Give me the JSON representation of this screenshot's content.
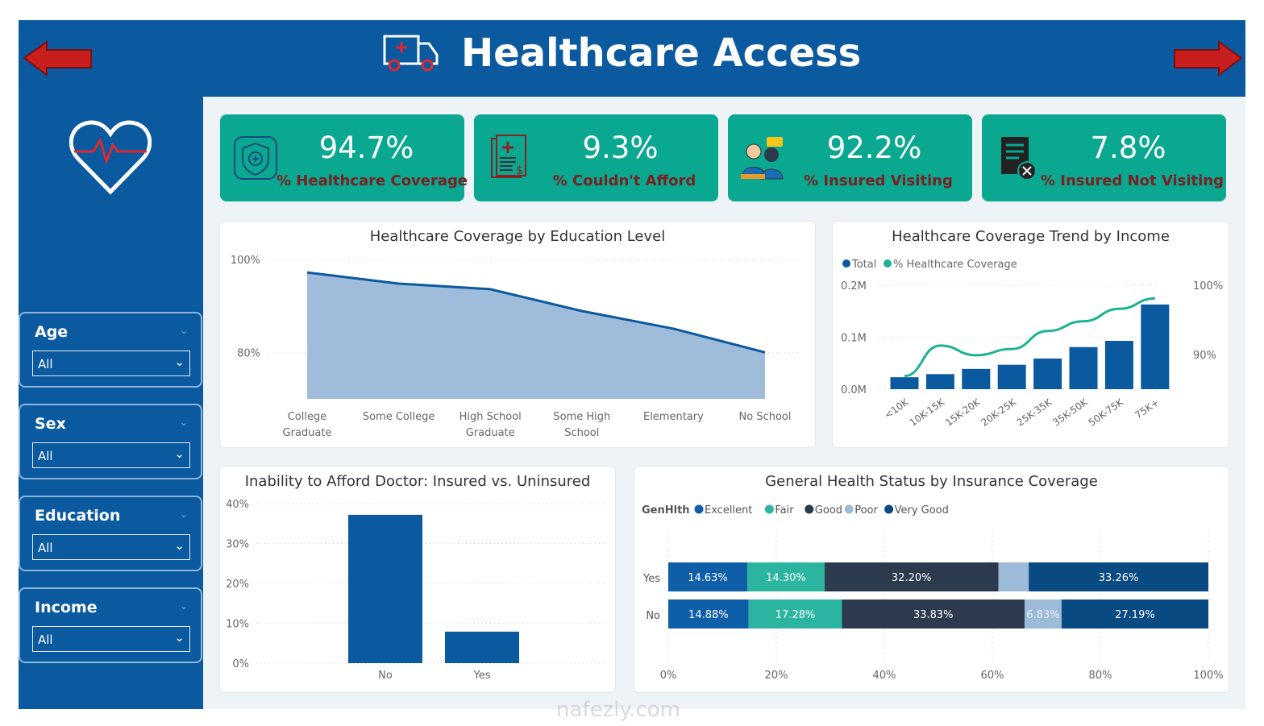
{
  "header": {
    "title": "Healthcare Access",
    "back_icon": "arrow-left-icon",
    "forward_icon": "arrow-right-icon",
    "logo_icon": "ambulance-icon"
  },
  "sidebar": {
    "logo_icon": "heart-pulse-icon",
    "slicers": [
      {
        "label": "Age",
        "value": "All"
      },
      {
        "label": "Sex",
        "value": "All"
      },
      {
        "label": "Education",
        "value": "All"
      },
      {
        "label": "Income",
        "value": "All"
      }
    ]
  },
  "kpis": [
    {
      "value": "94.7%",
      "label": "% Healthcare Coverage",
      "icon": "shield-plus-icon"
    },
    {
      "value": "9.3%",
      "label": "% Couldn't Afford",
      "icon": "medical-bill-icon"
    },
    {
      "value": "92.2%",
      "label": "% Insured Visiting",
      "icon": "doctor-patient-icon"
    },
    {
      "value": "7.8%",
      "label": "% Insured Not Visiting",
      "icon": "document-cancel-icon"
    }
  ],
  "colors": {
    "brand": "#0b5aa0",
    "kpi": "#0aa791",
    "kpi_label": "#7a2020",
    "excellent": "#0f5ea8",
    "fair": "#2bb5a0",
    "good": "#2b3a4d",
    "poor": "#9bbbd8",
    "very_good": "#0a4a82"
  },
  "watermark": "nafezly.com",
  "chart_data": [
    {
      "type": "area",
      "title": "Healthcare Coverage by Education Level",
      "categories": [
        "College Graduate",
        "Some College",
        "High School Graduate",
        "Some High School",
        "Elementary",
        "No School"
      ],
      "values": [
        97.2,
        94.8,
        93.6,
        88.9,
        85.1,
        80.0
      ],
      "yticks": [
        "100%",
        "80%"
      ],
      "ylim": [
        70,
        100
      ],
      "grid": true
    },
    {
      "type": "bar+line",
      "title": "Healthcare Coverage Trend by Income",
      "categories": [
        "<10K",
        "10K-15K",
        "15K-20K",
        "20K-25K",
        "25K-35K",
        "35K-50K",
        "50K-75K",
        "75K+"
      ],
      "series": [
        {
          "name": "Total",
          "type": "bar",
          "values": [
            0.023,
            0.029,
            0.039,
            0.047,
            0.059,
            0.081,
            0.093,
            0.163
          ],
          "axis": "left"
        },
        {
          "name": "% Healthcare Coverage",
          "type": "line",
          "values": [
            86.9,
            91.3,
            89.9,
            90.8,
            93.4,
            94.8,
            96.6,
            98.1
          ],
          "axis": "right"
        }
      ],
      "yticks_left": [
        "0.2M",
        "0.1M",
        "0.0M"
      ],
      "ylim_left": [
        0,
        0.2
      ],
      "yticks_right": [
        "100%",
        "90%"
      ],
      "ylim_right": [
        85,
        100
      ],
      "legend": "top-left"
    },
    {
      "type": "bar",
      "title": "Inability to Afford Doctor: Insured vs. Uninsured",
      "categories": [
        "No",
        "Yes"
      ],
      "values": [
        37.2,
        7.9
      ],
      "yticks": [
        "40%",
        "30%",
        "20%",
        "10%",
        "0%"
      ],
      "ylim": [
        0,
        40
      ]
    },
    {
      "type": "stacked-bar-100",
      "title": "General Health Status by Insurance Coverage",
      "legend_title": "GenHlth",
      "legend": "top-left",
      "categories": [
        "Yes",
        "No"
      ],
      "series": [
        {
          "name": "Excellent",
          "values": [
            14.63,
            14.88
          ],
          "labels": [
            "14.63%",
            "14.88%"
          ]
        },
        {
          "name": "Fair",
          "values": [
            14.3,
            17.28
          ],
          "labels": [
            "14.30%",
            "17.28%"
          ]
        },
        {
          "name": "Good",
          "values": [
            32.2,
            33.83
          ],
          "labels": [
            "32.20%",
            "33.83%"
          ]
        },
        {
          "name": "Poor",
          "values": [
            5.61,
            6.83
          ],
          "labels": [
            "",
            "6.83%"
          ]
        },
        {
          "name": "Very Good",
          "values": [
            33.26,
            27.19
          ],
          "labels": [
            "33.26%",
            "27.19%"
          ]
        }
      ],
      "xticks": [
        "0%",
        "20%",
        "40%",
        "60%",
        "80%",
        "100%"
      ]
    }
  ]
}
